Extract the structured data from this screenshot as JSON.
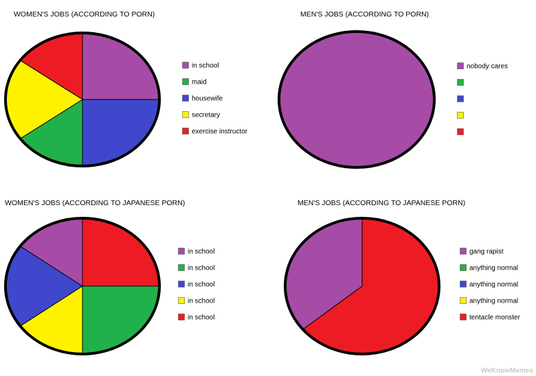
{
  "chart_data": [
    {
      "type": "pie",
      "title": "WOMEN'S JOBS (ACCORDING TO PORN)",
      "slices": [
        {
          "label": "in school",
          "value": 25,
          "color": "#a64ca6"
        },
        {
          "label": "maid",
          "value": 15,
          "color": "#21b14b"
        },
        {
          "label": "housewife",
          "value": 25,
          "color": "#3f48cc"
        },
        {
          "label": "secretary",
          "value": 20,
          "color": "#fff200"
        },
        {
          "label": "exercise instructor",
          "value": 15,
          "color": "#ed1c24"
        }
      ],
      "draw_order": [
        "in school",
        "housewife",
        "maid",
        "secretary",
        "exercise instructor"
      ],
      "legend_position": "right"
    },
    {
      "type": "pie",
      "title": "MEN'S JOBS (ACCORDING TO PORN)",
      "slices": [
        {
          "label": "nobody cares",
          "value": 100,
          "color": "#a64ca6"
        },
        {
          "label": "",
          "value": 0,
          "color": "#21b14b"
        },
        {
          "label": "",
          "value": 0,
          "color": "#3f48cc"
        },
        {
          "label": "",
          "value": 0,
          "color": "#fff200"
        },
        {
          "label": "",
          "value": 0,
          "color": "#ed1c24"
        }
      ],
      "legend_position": "right"
    },
    {
      "type": "pie",
      "title": "WOMEN'S JOBS (ACCORDING TO JAPANESE PORN)",
      "slices": [
        {
          "label": "in school",
          "value": 15,
          "color": "#a64ca6"
        },
        {
          "label": "in school",
          "value": 25,
          "color": "#21b14b"
        },
        {
          "label": "in school",
          "value": 20,
          "color": "#3f48cc"
        },
        {
          "label": "in school",
          "value": 15,
          "color": "#fff200"
        },
        {
          "label": "in school",
          "value": 25,
          "color": "#ed1c24"
        }
      ],
      "draw_order": [
        4,
        1,
        3,
        2,
        0
      ],
      "legend_position": "right"
    },
    {
      "type": "pie",
      "title": "MEN'S JOBS (ACCORDING TO JAPANESE PORN)",
      "slices": [
        {
          "label": "gang rapist",
          "value": 36,
          "color": "#a64ca6"
        },
        {
          "label": "anything normal",
          "value": 0,
          "color": "#21b14b"
        },
        {
          "label": "anything normal",
          "value": 0,
          "color": "#3f48cc"
        },
        {
          "label": "anything normal",
          "value": 0,
          "color": "#fff200"
        },
        {
          "label": "tentacle monster",
          "value": 64,
          "color": "#ed1c24"
        }
      ],
      "draw_order": [
        4,
        0
      ],
      "legend_position": "right"
    }
  ],
  "watermark": "WeKnowMemes"
}
